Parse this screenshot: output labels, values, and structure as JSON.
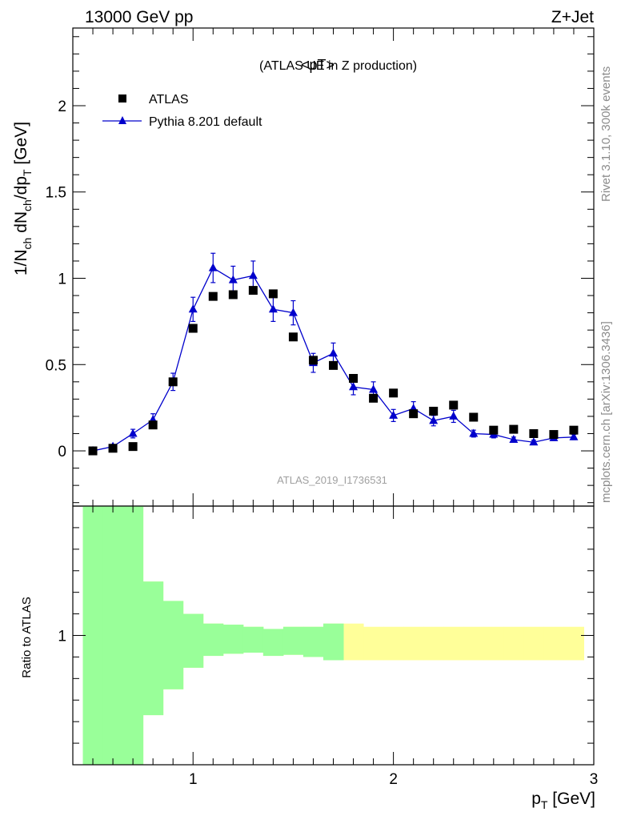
{
  "header": {
    "left": "13000 GeV pp",
    "right": "Z+Jet"
  },
  "side_texts": {
    "rivet": "Rivet 3.1.10,  300k events",
    "mcplots": "mcplots.cern.ch [arXiv:1306.3436]"
  },
  "watermark": "ATLAS_2019_I1736531",
  "chart_data": [
    {
      "type": "scatter",
      "title": "<pT>",
      "subtitle": "(ATLAS UE in Z production)",
      "ylabel": {
        "main": "1/N",
        "sub1": "ch",
        "mid": " dN",
        "sub2": "ch",
        "tail": "/dp",
        "sub3": "T",
        "unit": " [GeV]"
      },
      "xlim": [
        0.4,
        3.0
      ],
      "ylim": [
        -0.32,
        2.45
      ],
      "yticks": [
        0,
        0.5,
        1,
        1.5,
        2
      ],
      "ytick_labels": [
        "0",
        "0.5",
        "1",
        "1.5",
        "2"
      ],
      "legend_position": "top-left",
      "series": [
        {
          "name": "ATLAS",
          "marker": "square",
          "color": "#000000",
          "x": [
            0.5,
            0.6,
            0.7,
            0.8,
            0.9,
            1.0,
            1.1,
            1.2,
            1.3,
            1.4,
            1.5,
            1.6,
            1.7,
            1.8,
            1.9,
            2.0,
            2.1,
            2.2,
            2.3,
            2.4,
            2.5,
            2.6,
            2.7,
            2.8,
            2.9
          ],
          "y": [
            0.0,
            0.015,
            0.025,
            0.15,
            0.4,
            0.71,
            0.895,
            0.905,
            0.93,
            0.91,
            0.66,
            0.525,
            0.495,
            0.42,
            0.305,
            0.335,
            0.215,
            0.23,
            0.265,
            0.195,
            0.12,
            0.125,
            0.1,
            0.095,
            0.12
          ]
        },
        {
          "name": "Pythia 8.201 default",
          "marker": "triangle",
          "color": "#0000cc",
          "x": [
            0.5,
            0.6,
            0.7,
            0.8,
            0.9,
            1.0,
            1.1,
            1.2,
            1.3,
            1.4,
            1.5,
            1.6,
            1.7,
            1.8,
            1.9,
            2.0,
            2.1,
            2.2,
            2.3,
            2.4,
            2.5,
            2.6,
            2.7,
            2.8,
            2.9
          ],
          "y": [
            0.0,
            0.025,
            0.1,
            0.18,
            0.4,
            0.82,
            1.06,
            0.99,
            1.015,
            0.82,
            0.8,
            0.51,
            0.565,
            0.37,
            0.355,
            0.205,
            0.245,
            0.175,
            0.2,
            0.1,
            0.095,
            0.065,
            0.05,
            0.075,
            0.08
          ],
          "err": [
            0.005,
            0.01,
            0.025,
            0.035,
            0.05,
            0.07,
            0.085,
            0.08,
            0.085,
            0.07,
            0.07,
            0.055,
            0.06,
            0.045,
            0.045,
            0.035,
            0.04,
            0.03,
            0.035,
            0.02,
            0.02,
            0.015,
            0.012,
            0.015,
            0.015
          ]
        }
      ]
    },
    {
      "type": "area",
      "ylabel": "Ratio to ATLAS",
      "xlabel": {
        "main": "p",
        "sub": "T",
        "unit": " [GeV]"
      },
      "xlim": [
        0.4,
        3.0
      ],
      "ylim": [
        0.4,
        1.6
      ],
      "yticks": [
        1
      ],
      "ytick_labels": [
        "1"
      ],
      "xticks": [
        1,
        2,
        3
      ],
      "xtick_labels": [
        "1",
        "2",
        "3"
      ],
      "bins": [
        0.45,
        0.55,
        0.65,
        0.75,
        0.85,
        0.95,
        1.05,
        1.15,
        1.25,
        1.35,
        1.45,
        1.55,
        1.65,
        1.75,
        1.85,
        1.95,
        2.05,
        2.15,
        2.25,
        2.35,
        2.45,
        2.55,
        2.65,
        2.75,
        2.85,
        2.95
      ],
      "bands": [
        {
          "name": "yellow",
          "color": "#ffff99",
          "low": [
            0.4,
            0.4,
            0.4,
            0.63,
            0.75,
            0.85,
            0.905,
            0.915,
            0.92,
            0.905,
            0.91,
            0.9,
            0.885,
            0.885,
            0.885,
            0.885,
            0.885,
            0.885,
            0.885,
            0.885,
            0.885,
            0.885,
            0.885,
            0.885,
            0.885
          ],
          "high": [
            1.6,
            1.6,
            1.6,
            1.25,
            1.16,
            1.1,
            1.055,
            1.05,
            1.04,
            1.03,
            1.04,
            1.04,
            1.055,
            1.055,
            1.04,
            1.04,
            1.04,
            1.04,
            1.04,
            1.04,
            1.04,
            1.04,
            1.04,
            1.04,
            1.04
          ]
        },
        {
          "name": "green",
          "color": "#99ff99",
          "low": [
            0.4,
            0.4,
            0.4,
            0.63,
            0.75,
            0.85,
            0.905,
            0.915,
            0.92,
            0.905,
            0.91,
            0.9,
            0.885
          ],
          "high": [
            1.6,
            1.6,
            1.6,
            1.25,
            1.16,
            1.1,
            1.055,
            1.05,
            1.04,
            1.03,
            1.04,
            1.04,
            1.055
          ]
        }
      ]
    }
  ]
}
